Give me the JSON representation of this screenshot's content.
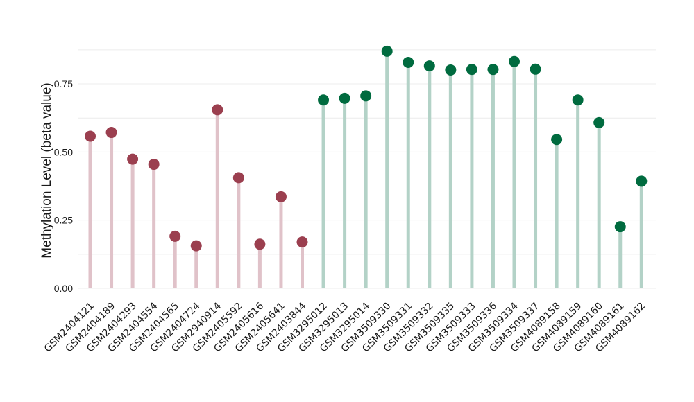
{
  "chart_data": {
    "type": "lollipop",
    "title": "",
    "xlabel": "",
    "ylabel": "Methylation Level (beta value)",
    "ylim": [
      0,
      0.9
    ],
    "yticks": [
      0.0,
      0.25,
      0.5,
      0.75
    ],
    "ytick_labels": [
      "0.00",
      "0.25",
      "0.50",
      "0.75"
    ],
    "grid": true,
    "categories": [
      "GSM2404121",
      "GSM2404189",
      "GSM2404293",
      "GSM2404554",
      "GSM2404565",
      "GSM2404724",
      "GSM2940914",
      "GSM2405592",
      "GSM2405616",
      "GSM2405641",
      "GSM2403844",
      "GSM3295012",
      "GSM3295013",
      "GSM3295014",
      "GSM3509330",
      "GSM3509331",
      "GSM3509332",
      "GSM3509335",
      "GSM3509333",
      "GSM3509336",
      "GSM3509334",
      "GSM3509337",
      "GSM4089158",
      "GSM4089159",
      "GSM4089160",
      "GSM4089161",
      "GSM4089162"
    ],
    "values": [
      0.558,
      0.572,
      0.474,
      0.455,
      0.191,
      0.156,
      0.655,
      0.406,
      0.162,
      0.336,
      0.17,
      0.691,
      0.697,
      0.706,
      0.87,
      0.829,
      0.816,
      0.801,
      0.803,
      0.803,
      0.832,
      0.804,
      0.546,
      0.691,
      0.608,
      0.226,
      0.393
    ],
    "groups": [
      "red",
      "red",
      "red",
      "red",
      "red",
      "red",
      "red",
      "red",
      "red",
      "red",
      "red",
      "green",
      "green",
      "green",
      "green",
      "green",
      "green",
      "green",
      "green",
      "green",
      "green",
      "green",
      "green",
      "green",
      "green",
      "green",
      "green"
    ],
    "colors": {
      "red_point": "#9b3f4f",
      "red_stem": "#e0c2c9",
      "green_point": "#006b3f",
      "green_stem": "#b3d2c7",
      "grid": "#ececec"
    }
  }
}
